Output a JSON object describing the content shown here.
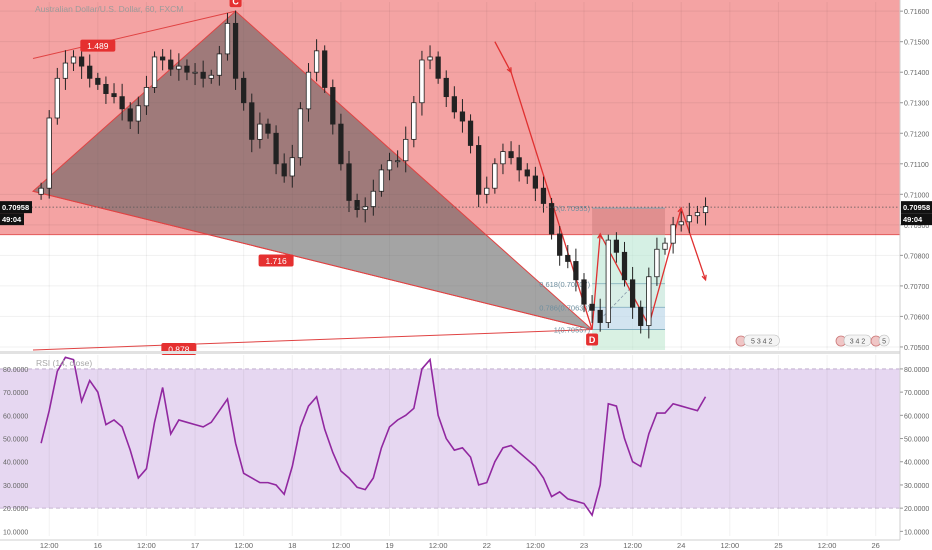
{
  "chart_data": {
    "type": "candlestick",
    "title": "Australian Dollar/U.S. Dollar, 60, FXCM",
    "symbol_price_label": "0.70958",
    "countdown_label": "49:04",
    "y_ticks": [
      "0.71600",
      "0.71500",
      "0.71400",
      "0.71300",
      "0.71200",
      "0.71100",
      "0.71000",
      "0.70900",
      "0.70800",
      "0.70700",
      "0.70600",
      "0.70500"
    ],
    "y_tick_values": [
      0.716,
      0.715,
      0.714,
      0.713,
      0.712,
      0.711,
      0.71,
      0.709,
      0.708,
      0.707,
      0.706,
      0.705
    ],
    "ylim": [
      0.7049,
      0.7163
    ],
    "x_ticks": [
      {
        "label": "12:00",
        "t": 1
      },
      {
        "label": "16",
        "t": 7
      },
      {
        "label": "12:00",
        "t": 13
      },
      {
        "label": "17",
        "t": 19
      },
      {
        "label": "12:00",
        "t": 25
      },
      {
        "label": "18",
        "t": 31
      },
      {
        "label": "12:00",
        "t": 37
      },
      {
        "label": "19",
        "t": 43
      },
      {
        "label": "12:00",
        "t": 49
      },
      {
        "label": "22",
        "t": 55
      },
      {
        "label": "12:00",
        "t": 61
      },
      {
        "label": "23",
        "t": 67
      },
      {
        "label": "12:00",
        "t": 73
      },
      {
        "label": "24",
        "t": 79
      },
      {
        "label": "12:00",
        "t": 85
      },
      {
        "label": "25",
        "t": 91
      },
      {
        "label": "12:00",
        "t": 97
      },
      {
        "label": "26",
        "t": 103
      }
    ],
    "xlim": [
      -1,
      106
    ],
    "close": [
      0.7102,
      0.7125,
      0.7138,
      0.7143,
      0.7145,
      0.7142,
      0.7138,
      0.7136,
      0.7133,
      0.7132,
      0.7128,
      0.7124,
      0.7129,
      0.7135,
      0.7145,
      0.7144,
      0.7141,
      0.7142,
      0.714,
      0.714,
      0.7138,
      0.7139,
      0.7146,
      0.7156,
      0.7138,
      0.713,
      0.7118,
      0.7123,
      0.712,
      0.711,
      0.7106,
      0.7112,
      0.7128,
      0.714,
      0.7147,
      0.7135,
      0.7123,
      0.711,
      0.7098,
      0.7095,
      0.7096,
      0.7101,
      0.7108,
      0.7111,
      0.7111,
      0.7118,
      0.713,
      0.7144,
      0.7145,
      0.7138,
      0.7132,
      0.7127,
      0.7124,
      0.7116,
      0.71,
      0.7102,
      0.711,
      0.7114,
      0.7112,
      0.7108,
      0.7106,
      0.7102,
      0.7097,
      0.7087,
      0.708,
      0.7078,
      0.7072,
      0.7064,
      0.7062,
      0.7058,
      0.7085,
      0.7081,
      0.7072,
      0.7063,
      0.7057,
      0.7073,
      0.7082,
      0.7084,
      0.709,
      0.7091,
      0.7093,
      0.7094,
      0.7096
    ],
    "rsi": {
      "title": "RSI (14, close)",
      "y_ticks": [
        "80.0000",
        "70.0000",
        "60.0000",
        "50.0000",
        "40.0000",
        "30.0000",
        "20.0000",
        "10.0000"
      ],
      "y_tick_values": [
        80,
        70,
        60,
        50,
        40,
        30,
        20,
        10
      ],
      "ylim": [
        8,
        86
      ],
      "upper_band": 80,
      "lower_band": 20,
      "values": [
        48,
        62,
        79,
        85,
        84,
        66,
        75,
        70,
        56,
        58,
        55,
        45,
        33,
        37,
        57,
        72,
        52,
        58,
        57,
        56,
        55,
        57,
        62,
        67,
        48,
        35,
        33,
        31,
        31,
        30,
        26,
        38,
        55,
        64,
        68,
        54,
        44,
        36,
        33,
        29,
        28,
        33,
        46,
        55,
        58,
        60,
        63,
        80,
        84,
        60,
        50,
        45,
        46,
        42,
        30,
        31,
        40,
        46,
        47,
        44,
        41,
        38,
        33,
        25,
        27,
        24,
        23,
        22,
        17,
        30,
        65,
        64,
        50,
        40,
        38,
        52,
        61,
        61,
        65,
        64,
        63,
        62,
        68
      ]
    },
    "pattern": {
      "point_c_label": "C",
      "point_d_label": "D",
      "ratio_top_label": "1.489",
      "ratio_mid_label": "1.716",
      "ratio_bottom_label": "0.878"
    },
    "fib": {
      "zero_label": "0(0.70955)",
      "f618_label": "0.618(0.70707)",
      "f786_label": "0.786(0.70630)",
      "one_label": "1(0.70557)"
    },
    "event_badges": [
      "5 3 4 2",
      "3 4 2",
      "5"
    ]
  }
}
